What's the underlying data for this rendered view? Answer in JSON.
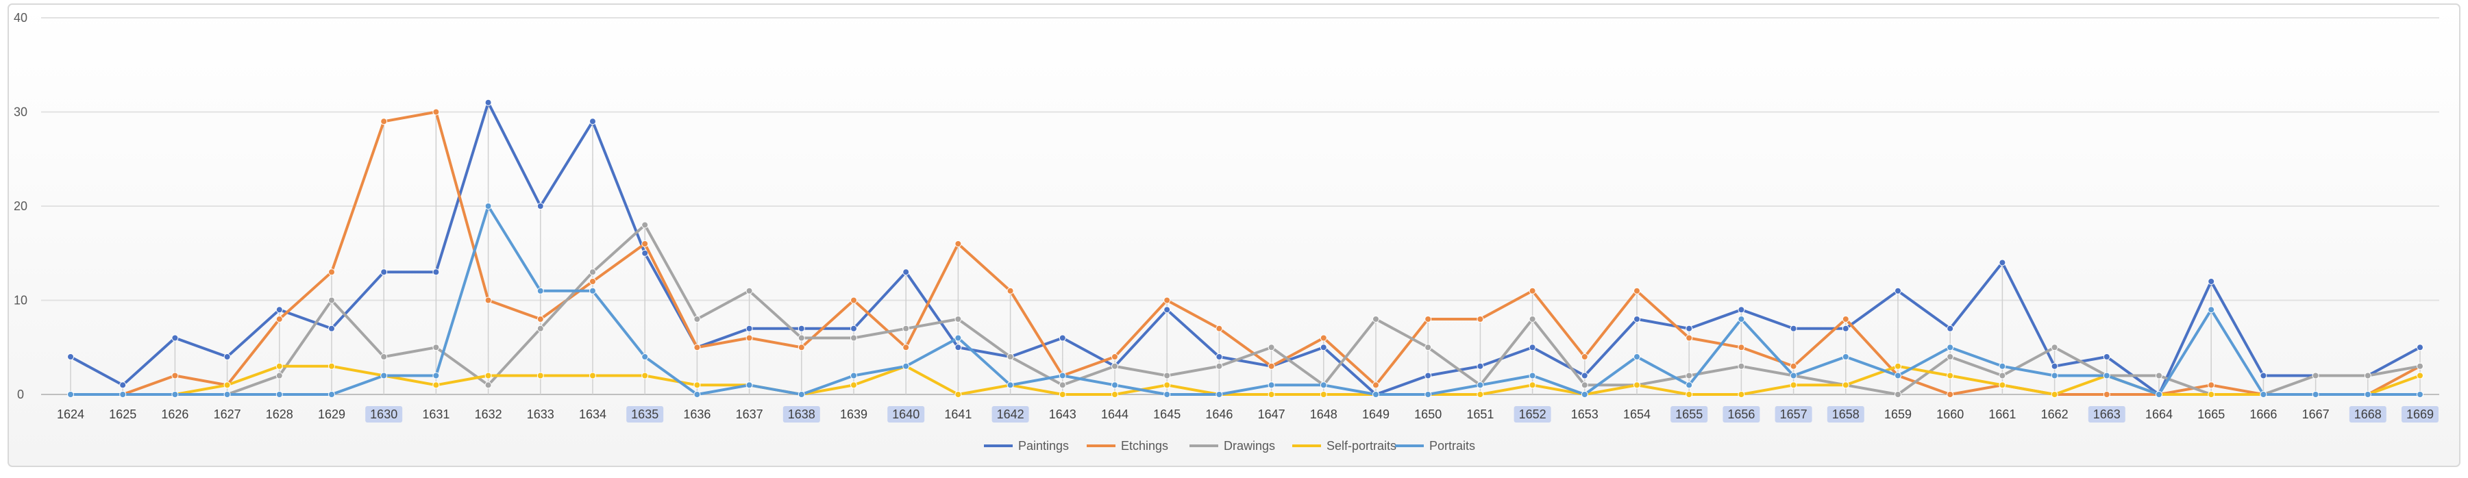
{
  "chart_data": {
    "type": "line",
    "title": "",
    "xlabel": "",
    "ylabel": "",
    "ylim": [
      0,
      40
    ],
    "yticks": [
      0,
      10,
      20,
      30,
      40
    ],
    "grid": true,
    "legend_position": "bottom-center",
    "categories": [
      "1624",
      "1625",
      "1626",
      "1627",
      "1628",
      "1629",
      "1630",
      "1631",
      "1632",
      "1633",
      "1634",
      "1635",
      "1636",
      "1637",
      "1638",
      "1639",
      "1640",
      "1641",
      "1642",
      "1643",
      "1644",
      "1645",
      "1646",
      "1647",
      "1648",
      "1649",
      "1650",
      "1651",
      "1652",
      "1653",
      "1654",
      "1655",
      "1656",
      "1657",
      "1658",
      "1659",
      "1660",
      "1661",
      "1662",
      "1663",
      "1664",
      "1665",
      "1666",
      "1667",
      "1668",
      "1669"
    ],
    "highlighted_categories": [
      "1630",
      "1635",
      "1638",
      "1640",
      "1642",
      "1652",
      "1655",
      "1656",
      "1657",
      "1658",
      "1663",
      "1668",
      "1669"
    ],
    "highlight_color": "#c7d3f0",
    "series": [
      {
        "name": "Paintings",
        "color": "#4a72c4",
        "values": [
          4,
          1,
          6,
          4,
          9,
          7,
          13,
          13,
          31,
          20,
          29,
          15,
          5,
          7,
          7,
          7,
          13,
          5,
          4,
          6,
          3,
          9,
          4,
          3,
          5,
          0,
          2,
          3,
          5,
          2,
          8,
          7,
          9,
          7,
          7,
          11,
          7,
          14,
          3,
          4,
          0,
          12,
          2,
          2,
          2,
          5
        ]
      },
      {
        "name": "Etchings",
        "color": "#ec8a44",
        "values": [
          0,
          0,
          2,
          1,
          8,
          13,
          29,
          30,
          10,
          8,
          12,
          16,
          5,
          6,
          5,
          10,
          5,
          16,
          11,
          2,
          4,
          10,
          7,
          3,
          6,
          1,
          8,
          8,
          11,
          4,
          11,
          6,
          5,
          3,
          8,
          2,
          0,
          1,
          0,
          0,
          0,
          1,
          0,
          0,
          0,
          3
        ]
      },
      {
        "name": "Drawings",
        "color": "#a5a5a5",
        "values": [
          0,
          0,
          0,
          0,
          2,
          10,
          4,
          5,
          1,
          7,
          13,
          18,
          8,
          11,
          6,
          6,
          7,
          8,
          4,
          1,
          3,
          2,
          3,
          5,
          1,
          8,
          5,
          1,
          8,
          1,
          1,
          2,
          3,
          2,
          1,
          0,
          4,
          2,
          5,
          2,
          2,
          0,
          0,
          2,
          2,
          3
        ]
      },
      {
        "name": "Self-portraits",
        "color": "#f7c21b",
        "values": [
          0,
          0,
          0,
          1,
          3,
          3,
          2,
          1,
          2,
          2,
          2,
          2,
          1,
          1,
          0,
          1,
          3,
          0,
          1,
          0,
          0,
          1,
          0,
          0,
          0,
          0,
          0,
          0,
          1,
          0,
          1,
          0,
          0,
          1,
          1,
          3,
          2,
          1,
          0,
          2,
          0,
          0,
          0,
          0,
          0,
          2
        ]
      },
      {
        "name": "Portraits",
        "color": "#5b9bd5",
        "values": [
          0,
          0,
          0,
          0,
          0,
          0,
          2,
          2,
          20,
          11,
          11,
          4,
          0,
          1,
          0,
          2,
          3,
          6,
          1,
          2,
          1,
          0,
          0,
          1,
          1,
          0,
          0,
          1,
          2,
          0,
          4,
          1,
          8,
          2,
          4,
          2,
          5,
          3,
          2,
          2,
          0,
          9,
          0,
          0,
          0,
          0
        ]
      }
    ]
  }
}
